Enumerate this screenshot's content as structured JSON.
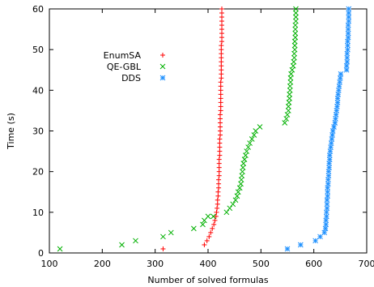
{
  "chart_data": {
    "type": "scatter",
    "xlabel": "Number of solved formulas",
    "ylabel": "Time (s)",
    "xlim": [
      100,
      700
    ],
    "ylim": [
      0,
      60
    ],
    "xticks": [
      100,
      200,
      300,
      400,
      500,
      600,
      700
    ],
    "yticks": [
      0,
      10,
      20,
      30,
      40,
      50,
      60
    ],
    "grid": false,
    "legend_position": "upper-left-inside",
    "series": [
      {
        "name": "EnumSA",
        "color": "#ff0000",
        "marker": "plus",
        "points": [
          [
            315,
            1
          ],
          [
            393,
            2
          ],
          [
            398,
            3
          ],
          [
            402,
            4
          ],
          [
            405,
            5
          ],
          [
            408,
            6
          ],
          [
            411,
            7
          ],
          [
            413,
            8
          ],
          [
            415,
            9
          ],
          [
            416,
            10
          ],
          [
            417,
            11
          ],
          [
            418,
            12
          ],
          [
            418,
            13
          ],
          [
            419,
            14
          ],
          [
            419,
            15
          ],
          [
            420,
            16
          ],
          [
            420,
            17
          ],
          [
            420,
            18
          ],
          [
            421,
            19
          ],
          [
            421,
            20
          ],
          [
            421,
            21
          ],
          [
            421,
            22
          ],
          [
            421,
            23
          ],
          [
            422,
            24
          ],
          [
            422,
            25
          ],
          [
            422,
            26
          ],
          [
            422,
            27
          ],
          [
            422,
            28
          ],
          [
            423,
            29
          ],
          [
            423,
            30
          ],
          [
            423,
            31
          ],
          [
            423,
            32
          ],
          [
            423,
            33
          ],
          [
            423,
            34
          ],
          [
            424,
            35
          ],
          [
            424,
            36
          ],
          [
            424,
            37
          ],
          [
            424,
            38
          ],
          [
            424,
            39
          ],
          [
            424,
            40
          ],
          [
            424,
            41
          ],
          [
            424,
            42
          ],
          [
            425,
            43
          ],
          [
            425,
            44
          ],
          [
            425,
            45
          ],
          [
            425,
            46
          ],
          [
            425,
            47
          ],
          [
            425,
            48
          ],
          [
            425,
            49
          ],
          [
            425,
            50
          ],
          [
            425,
            51
          ],
          [
            426,
            52
          ],
          [
            426,
            53
          ],
          [
            426,
            54
          ],
          [
            426,
            55
          ],
          [
            426,
            56
          ],
          [
            426,
            57
          ],
          [
            426,
            58
          ],
          [
            426,
            59
          ],
          [
            426,
            60
          ]
        ]
      },
      {
        "name": "QE-GBL",
        "color": "#00b000",
        "marker": "x",
        "points": [
          [
            120,
            1
          ],
          [
            237,
            2
          ],
          [
            263,
            3
          ],
          [
            315,
            4
          ],
          [
            330,
            5
          ],
          [
            373,
            6
          ],
          [
            390,
            7
          ],
          [
            393,
            8
          ],
          [
            400,
            9
          ],
          [
            410,
            9
          ],
          [
            435,
            10
          ],
          [
            441,
            11
          ],
          [
            447,
            12
          ],
          [
            452,
            13
          ],
          [
            455,
            14
          ],
          [
            457,
            15
          ],
          [
            460,
            16
          ],
          [
            462,
            17
          ],
          [
            463,
            18
          ],
          [
            464,
            19
          ],
          [
            465,
            20
          ],
          [
            466,
            21
          ],
          [
            467,
            22
          ],
          [
            469,
            23
          ],
          [
            471,
            24
          ],
          [
            473,
            25
          ],
          [
            476,
            26
          ],
          [
            479,
            27
          ],
          [
            483,
            28
          ],
          [
            487,
            29
          ],
          [
            490,
            30
          ],
          [
            498,
            31
          ],
          [
            545,
            32
          ],
          [
            548,
            33
          ],
          [
            550,
            34
          ],
          [
            552,
            35
          ],
          [
            552,
            36
          ],
          [
            553,
            37
          ],
          [
            554,
            38
          ],
          [
            554,
            39
          ],
          [
            555,
            40
          ],
          [
            555,
            41
          ],
          [
            556,
            42
          ],
          [
            556,
            43
          ],
          [
            557,
            44
          ],
          [
            559,
            45
          ],
          [
            561,
            46
          ],
          [
            562,
            47
          ],
          [
            563,
            48
          ],
          [
            563,
            49
          ],
          [
            564,
            50
          ],
          [
            564,
            51
          ],
          [
            564,
            52
          ],
          [
            565,
            53
          ],
          [
            565,
            54
          ],
          [
            565,
            55
          ],
          [
            565,
            56
          ],
          [
            566,
            57
          ],
          [
            566,
            58
          ],
          [
            566,
            59
          ],
          [
            566,
            60
          ]
        ]
      },
      {
        "name": "DDS",
        "color": "#1e90ff",
        "marker": "star",
        "points": [
          [
            550,
            1
          ],
          [
            575,
            2
          ],
          [
            603,
            3
          ],
          [
            612,
            4
          ],
          [
            620,
            5
          ],
          [
            622,
            6
          ],
          [
            623,
            7
          ],
          [
            623,
            8
          ],
          [
            624,
            9
          ],
          [
            624,
            10
          ],
          [
            625,
            11
          ],
          [
            625,
            12
          ],
          [
            625,
            13
          ],
          [
            626,
            14
          ],
          [
            626,
            15
          ],
          [
            626,
            16
          ],
          [
            627,
            17
          ],
          [
            627,
            18
          ],
          [
            628,
            19
          ],
          [
            628,
            20
          ],
          [
            629,
            21
          ],
          [
            629,
            22
          ],
          [
            630,
            23
          ],
          [
            630,
            24
          ],
          [
            631,
            25
          ],
          [
            632,
            26
          ],
          [
            633,
            27
          ],
          [
            634,
            28
          ],
          [
            635,
            29
          ],
          [
            636,
            30
          ],
          [
            638,
            31
          ],
          [
            640,
            32
          ],
          [
            641,
            33
          ],
          [
            642,
            34
          ],
          [
            643,
            35
          ],
          [
            644,
            36
          ],
          [
            645,
            37
          ],
          [
            645,
            38
          ],
          [
            646,
            39
          ],
          [
            647,
            40
          ],
          [
            648,
            41
          ],
          [
            649,
            42
          ],
          [
            650,
            43
          ],
          [
            651,
            44
          ],
          [
            662,
            45
          ],
          [
            662,
            46
          ],
          [
            663,
            47
          ],
          [
            663,
            48
          ],
          [
            663,
            49
          ],
          [
            664,
            50
          ],
          [
            664,
            51
          ],
          [
            664,
            52
          ],
          [
            665,
            53
          ],
          [
            665,
            54
          ],
          [
            665,
            55
          ],
          [
            665,
            56
          ],
          [
            666,
            57
          ],
          [
            666,
            58
          ],
          [
            666,
            59
          ],
          [
            666,
            60
          ]
        ]
      }
    ]
  }
}
